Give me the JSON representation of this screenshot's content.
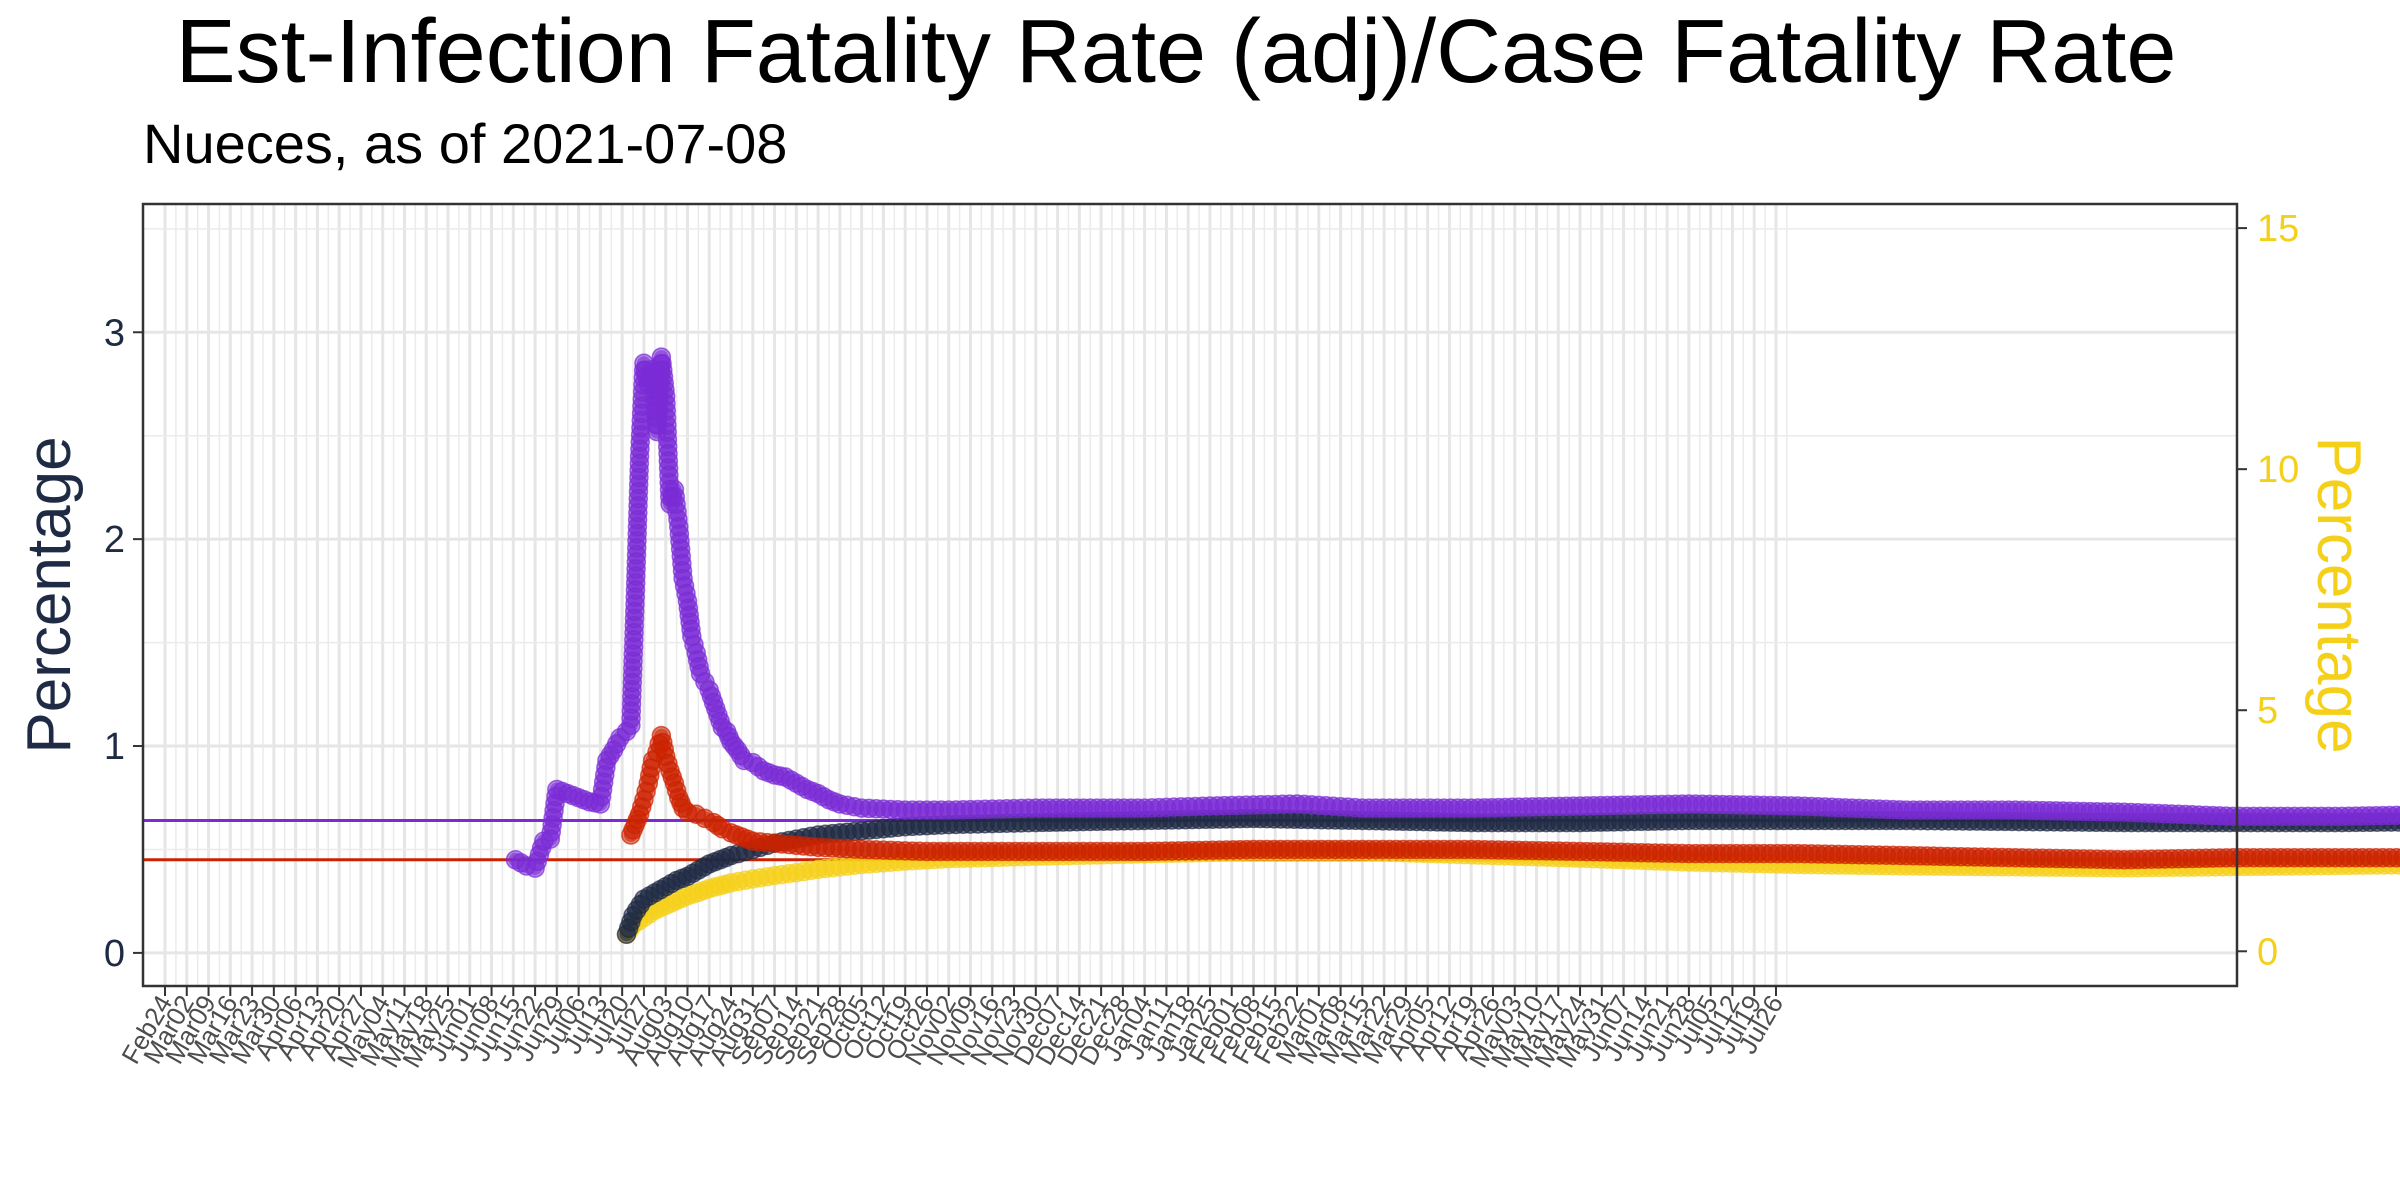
{
  "chart_data": {
    "type": "line",
    "title": "Est-Infection Fatality Rate (adj)/Case Fatality Rate",
    "subtitle": "Nueces, as of 2021-07-08",
    "ylabel": "Percentage",
    "y2label": "Percentage",
    "ylim": [
      -0.16,
      3.62
    ],
    "y2lim": [
      -0.72,
      15.5
    ],
    "yticks": [
      0,
      1,
      2,
      3
    ],
    "y2ticks": [
      0,
      5,
      10,
      15
    ],
    "grid": true,
    "x_tick_labels": [
      "Feb24",
      "Mar02",
      "Mar09",
      "Mar16",
      "Mar23",
      "Mar30",
      "Apr06",
      "Apr13",
      "Apr20",
      "Apr27",
      "May04",
      "May11",
      "May18",
      "May25",
      "Jun01",
      "Jun08",
      "Jun15",
      "Jun22",
      "Jun29",
      "Jul06",
      "Jul13",
      "Jul20",
      "Jul27",
      "Aug03",
      "Aug10",
      "Aug17",
      "Aug24",
      "Aug31",
      "Sep07",
      "Sep14",
      "Sep21",
      "Sep28",
      "Oct05",
      "Oct12",
      "Oct19",
      "Oct26",
      "Nov02",
      "Nov09",
      "Nov16",
      "Nov23",
      "Nov30",
      "Dec07",
      "Dec14",
      "Dec21",
      "Dec28",
      "Jan04",
      "Jan11",
      "Jan18",
      "Jan25",
      "Feb01",
      "Feb08",
      "Feb15",
      "Feb22",
      "Mar01",
      "Mar08",
      "Mar15",
      "Mar22",
      "Mar29",
      "Apr05",
      "Apr12",
      "Apr19",
      "Apr26",
      "May03",
      "May10",
      "May17",
      "May24",
      "May31",
      "Jun07",
      "Jun14",
      "Jun21",
      "Jun28",
      "Jul05",
      "Jul12",
      "Jul19",
      "Jul26"
    ],
    "reference_lines": [
      {
        "value": 0.64,
        "color": "#7a2bd6"
      },
      {
        "value": 0.45,
        "color": "#cc2200"
      }
    ],
    "series": [
      {
        "color": "#7a2bd6",
        "axis": "left",
        "points": [
          [
            16.1,
            0.45
          ],
          [
            16.6,
            0.42
          ],
          [
            17.0,
            0.41
          ],
          [
            17.4,
            0.54
          ],
          [
            17.7,
            0.55
          ],
          [
            18.0,
            0.79
          ],
          [
            18.5,
            0.77
          ],
          [
            19.0,
            0.75
          ],
          [
            19.5,
            0.73
          ],
          [
            20.0,
            0.72
          ],
          [
            20.3,
            0.93
          ],
          [
            20.6,
            0.98
          ],
          [
            20.9,
            1.04
          ],
          [
            21.2,
            1.07
          ],
          [
            21.4,
            1.1
          ],
          [
            21.6,
            1.72
          ],
          [
            21.8,
            2.4
          ],
          [
            22.0,
            2.85
          ],
          [
            22.2,
            2.75
          ],
          [
            22.4,
            2.82
          ],
          [
            22.6,
            2.52
          ],
          [
            22.8,
            2.88
          ],
          [
            23.0,
            2.69
          ],
          [
            23.2,
            2.17
          ],
          [
            23.4,
            2.24
          ],
          [
            23.6,
            2.06
          ],
          [
            23.8,
            1.81
          ],
          [
            24.0,
            1.7
          ],
          [
            24.2,
            1.53
          ],
          [
            24.4,
            1.45
          ],
          [
            24.6,
            1.35
          ],
          [
            24.8,
            1.31
          ],
          [
            25.0,
            1.27
          ],
          [
            25.2,
            1.21
          ],
          [
            25.4,
            1.15
          ],
          [
            25.6,
            1.09
          ],
          [
            25.8,
            1.07
          ],
          [
            26.0,
            1.02
          ],
          [
            26.3,
            0.98
          ],
          [
            26.6,
            0.93
          ],
          [
            27.0,
            0.92
          ],
          [
            27.5,
            0.88
          ],
          [
            28.0,
            0.86
          ],
          [
            28.5,
            0.85
          ],
          [
            29.0,
            0.82
          ],
          [
            29.5,
            0.79
          ],
          [
            30.0,
            0.77
          ],
          [
            30.5,
            0.74
          ],
          [
            31.0,
            0.72
          ],
          [
            32.0,
            0.7
          ],
          [
            34.0,
            0.69
          ],
          [
            36.0,
            0.69
          ],
          [
            40.0,
            0.7
          ],
          [
            45.0,
            0.7
          ],
          [
            48.0,
            0.71
          ],
          [
            52.0,
            0.72
          ],
          [
            55.0,
            0.7
          ],
          [
            60.0,
            0.7
          ],
          [
            65.0,
            0.71
          ],
          [
            70.0,
            0.72
          ],
          [
            75.0,
            0.71
          ],
          [
            80.0,
            0.69
          ],
          [
            85.0,
            0.69
          ],
          [
            90.0,
            0.68
          ],
          [
            95.0,
            0.66
          ],
          [
            100.0,
            0.66
          ],
          [
            105.0,
            0.67
          ],
          [
            110.0,
            0.68
          ],
          [
            115.0,
            0.67
          ],
          [
            120.0,
            0.66
          ],
          [
            125.0,
            0.66
          ],
          [
            130.0,
            0.66
          ],
          [
            133.0,
            0.65
          ],
          [
            137.3,
            0.65
          ]
        ]
      },
      {
        "color": "#1f2a44",
        "axis": "left",
        "points": [
          [
            21.2,
            0.09
          ],
          [
            21.5,
            0.18
          ],
          [
            22.0,
            0.26
          ],
          [
            22.5,
            0.29
          ],
          [
            23.0,
            0.32
          ],
          [
            23.5,
            0.35
          ],
          [
            24.0,
            0.37
          ],
          [
            24.5,
            0.4
          ],
          [
            25.0,
            0.43
          ],
          [
            25.5,
            0.45
          ],
          [
            26.0,
            0.47
          ],
          [
            27.0,
            0.5
          ],
          [
            28.0,
            0.53
          ],
          [
            29.0,
            0.55
          ],
          [
            30.0,
            0.57
          ],
          [
            32.0,
            0.59
          ],
          [
            34.0,
            0.61
          ],
          [
            36.0,
            0.62
          ],
          [
            40.0,
            0.63
          ],
          [
            45.0,
            0.64
          ],
          [
            50.0,
            0.65
          ],
          [
            55.0,
            0.64
          ],
          [
            60.0,
            0.63
          ],
          [
            65.0,
            0.63
          ],
          [
            70.0,
            0.64
          ],
          [
            75.0,
            0.64
          ],
          [
            80.0,
            0.64
          ],
          [
            90.0,
            0.63
          ],
          [
            100.0,
            0.63
          ],
          [
            110.0,
            0.64
          ],
          [
            120.0,
            0.64
          ],
          [
            130.0,
            0.64
          ],
          [
            137.3,
            0.64
          ]
        ]
      },
      {
        "color": "#cc2200",
        "axis": "left",
        "points": [
          [
            21.4,
            0.57
          ],
          [
            21.6,
            0.62
          ],
          [
            21.8,
            0.67
          ],
          [
            22.0,
            0.74
          ],
          [
            22.2,
            0.82
          ],
          [
            22.4,
            0.93
          ],
          [
            22.6,
            0.97
          ],
          [
            22.8,
            1.05
          ],
          [
            23.0,
            0.95
          ],
          [
            23.2,
            0.88
          ],
          [
            23.4,
            0.82
          ],
          [
            23.6,
            0.75
          ],
          [
            23.8,
            0.7
          ],
          [
            24.0,
            0.68
          ],
          [
            24.4,
            0.67
          ],
          [
            24.8,
            0.65
          ],
          [
            25.2,
            0.63
          ],
          [
            25.6,
            0.6
          ],
          [
            26.0,
            0.58
          ],
          [
            26.5,
            0.56
          ],
          [
            27.0,
            0.54
          ],
          [
            28.0,
            0.53
          ],
          [
            29.0,
            0.52
          ],
          [
            30.0,
            0.51
          ],
          [
            32.0,
            0.5
          ],
          [
            35.0,
            0.49
          ],
          [
            40.0,
            0.49
          ],
          [
            45.0,
            0.49
          ],
          [
            50.0,
            0.5
          ],
          [
            55.0,
            0.5
          ],
          [
            60.0,
            0.5
          ],
          [
            65.0,
            0.49
          ],
          [
            70.0,
            0.48
          ],
          [
            75.0,
            0.48
          ],
          [
            80.0,
            0.47
          ],
          [
            85.0,
            0.46
          ],
          [
            90.0,
            0.45
          ],
          [
            95.0,
            0.46
          ],
          [
            100.0,
            0.46
          ],
          [
            105.0,
            0.46
          ],
          [
            110.0,
            0.45
          ],
          [
            115.0,
            0.45
          ],
          [
            118.0,
            0.46
          ],
          [
            120.0,
            0.47
          ],
          [
            125.0,
            0.46
          ],
          [
            130.0,
            0.46
          ],
          [
            137.3,
            0.46
          ]
        ]
      },
      {
        "color": "#f5d01a",
        "axis": "right",
        "points": [
          [
            21.2,
            0.35
          ],
          [
            21.5,
            0.55
          ],
          [
            22.0,
            0.7
          ],
          [
            22.5,
            0.85
          ],
          [
            23.0,
            0.95
          ],
          [
            23.5,
            1.05
          ],
          [
            24.0,
            1.15
          ],
          [
            24.5,
            1.22
          ],
          [
            25.0,
            1.3
          ],
          [
            25.5,
            1.36
          ],
          [
            26.0,
            1.42
          ],
          [
            27.0,
            1.5
          ],
          [
            28.0,
            1.57
          ],
          [
            29.0,
            1.63
          ],
          [
            30.0,
            1.7
          ],
          [
            32.0,
            1.8
          ],
          [
            34.0,
            1.87
          ],
          [
            36.0,
            1.92
          ],
          [
            40.0,
            1.97
          ],
          [
            45.0,
            2.02
          ],
          [
            50.0,
            2.07
          ],
          [
            55.0,
            2.07
          ],
          [
            60.0,
            2.0
          ],
          [
            65.0,
            1.93
          ],
          [
            70.0,
            1.85
          ],
          [
            75.0,
            1.8
          ],
          [
            80.0,
            1.77
          ],
          [
            85.0,
            1.75
          ],
          [
            90.0,
            1.73
          ],
          [
            100.0,
            1.78
          ],
          [
            110.0,
            1.83
          ],
          [
            120.0,
            1.86
          ],
          [
            130.0,
            1.87
          ],
          [
            137.3,
            1.88
          ]
        ]
      }
    ]
  }
}
